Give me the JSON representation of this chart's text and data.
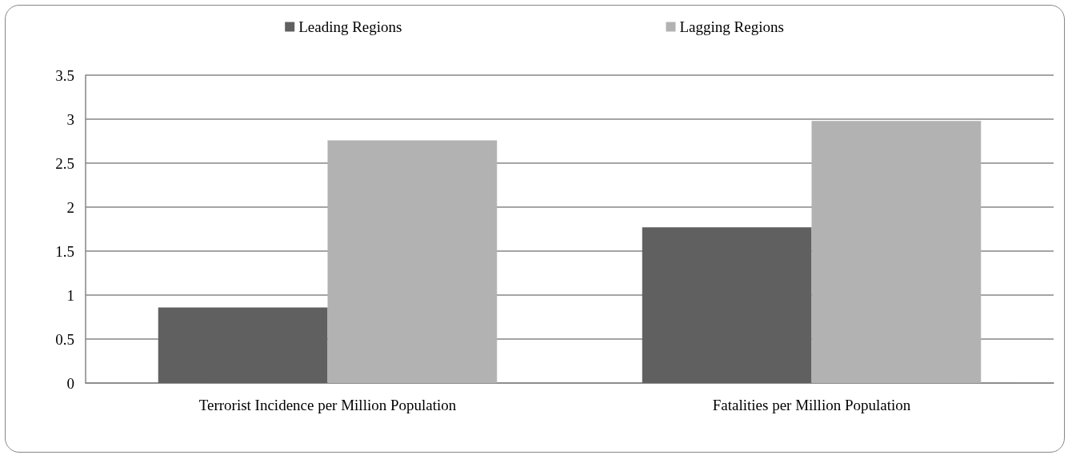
{
  "chart_data": {
    "type": "bar",
    "categories": [
      "Terrorist Incidence per Million Population",
      "Fatalities per Million Population"
    ],
    "series": [
      {
        "name": "Leading Regions",
        "color": "#606060",
        "values": [
          0.86,
          1.77
        ]
      },
      {
        "name": "Lagging Regions",
        "color": "#b2b2b2",
        "values": [
          2.76,
          2.98
        ]
      }
    ],
    "ylim": [
      0,
      3.5
    ],
    "yticks": [
      0,
      0.5,
      1,
      1.5,
      2,
      2.5,
      3,
      3.5
    ],
    "grid": "y",
    "legend": "top"
  }
}
